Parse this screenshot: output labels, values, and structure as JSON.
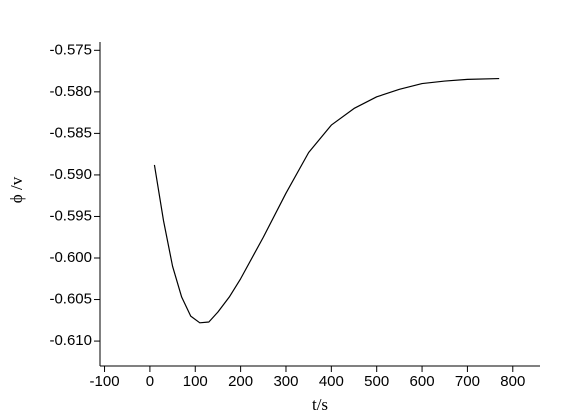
{
  "chart_data": {
    "type": "line",
    "xlabel": "t/s",
    "ylabel": "ϕ /v",
    "x": [
      10,
      30,
      50,
      70,
      90,
      110,
      130,
      150,
      175,
      200,
      250,
      300,
      350,
      400,
      450,
      500,
      550,
      600,
      650,
      700,
      770
    ],
    "series": [
      {
        "color": "#000000",
        "values": [
          -0.5888,
          -0.5955,
          -0.601,
          -0.6047,
          -0.607,
          -0.6078,
          -0.6077,
          -0.6065,
          -0.6047,
          -0.6025,
          -0.5975,
          -0.5922,
          -0.5873,
          -0.584,
          -0.582,
          -0.5806,
          -0.5797,
          -0.579,
          -0.5787,
          -0.5785,
          -0.5784
        ]
      }
    ],
    "xlim": [
      -110,
      860
    ],
    "ylim": [
      -0.613,
      -0.574
    ],
    "xticks": [
      -100,
      0,
      100,
      200,
      300,
      400,
      500,
      600,
      700,
      800
    ],
    "yticks": [
      -0.575,
      {
        "value": -0.58,
        "label": "-0.580"
      },
      -0.585,
      {
        "value": -0.59,
        "label": "-0.590"
      },
      -0.595,
      {
        "value": -0.6,
        "label": "-0.600"
      },
      -0.605,
      {
        "value": -0.61,
        "label": "-0.610"
      }
    ]
  }
}
